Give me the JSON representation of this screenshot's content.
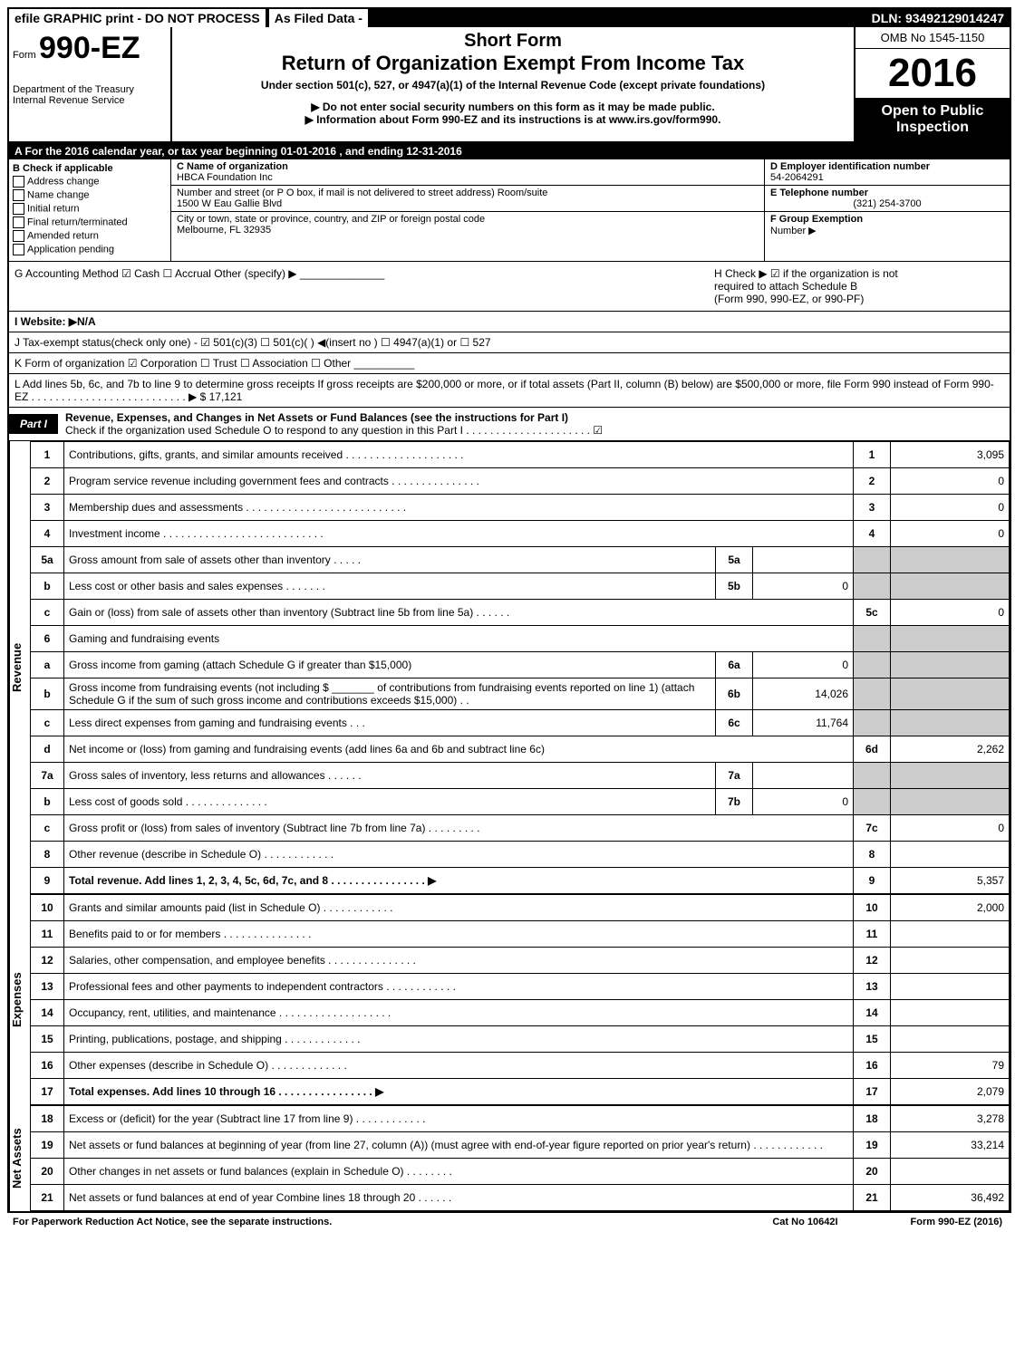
{
  "topbar": {
    "efile": "efile GRAPHIC print - DO NOT PROCESS",
    "filed": "As Filed Data -",
    "dln": "DLN: 93492129014247"
  },
  "header": {
    "form_prefix": "Form",
    "form_no": "990-EZ",
    "dept1": "Department of the Treasury",
    "dept2": "Internal Revenue Service",
    "short_form": "Short Form",
    "title": "Return of Organization Exempt From Income Tax",
    "subtitle": "Under section 501(c), 527, or 4947(a)(1) of the Internal Revenue Code (except private foundations)",
    "info1": "▶ Do not enter social security numbers on this form as it may be made public.",
    "info2": "▶ Information about Form 990-EZ and its instructions is at www.irs.gov/form990.",
    "omb": "OMB No 1545-1150",
    "year": "2016",
    "open1": "Open to Public",
    "open2": "Inspection"
  },
  "section_a": "A  For the 2016 calendar year, or tax year beginning 01-01-2016           , and ending 12-31-2016",
  "col_b": {
    "title": "B  Check if applicable",
    "opts": [
      "Address change",
      "Name change",
      "Initial return",
      "Final return/terminated",
      "Amended return",
      "Application pending"
    ]
  },
  "col_c": {
    "name_label": "C Name of organization",
    "name": "HBCA Foundation Inc",
    "street_label": "Number and street (or P O box, if mail is not delivered to street address)  Room/suite",
    "street": "1500 W Eau Gallie Blvd",
    "city_label": "City or town, state or province, country, and ZIP or foreign postal code",
    "city": "Melbourne, FL  32935"
  },
  "col_d": {
    "ein_label": "D Employer identification number",
    "ein": "54-2064291",
    "tel_label": "E Telephone number",
    "tel": "(321) 254-3700",
    "grp_label": "F Group Exemption",
    "grp2": "Number    ▶"
  },
  "row_g": {
    "left": "G Accounting Method    ☑ Cash   ☐ Accrual   Other (specify) ▶ ______________",
    "right1": "H   Check ▶   ☑  if the organization is not",
    "right2": "required to attach Schedule B",
    "right3": "(Form 990, 990-EZ, or 990-PF)"
  },
  "row_i": "I Website: ▶N/A",
  "row_j": "J Tax-exempt status(check only one) - ☑ 501(c)(3) ☐ 501(c)(  ) ◀(insert no ) ☐ 4947(a)(1) or ☐ 527",
  "row_k": "K Form of organization    ☑ Corporation   ☐ Trust   ☐ Association   ☐ Other  __________",
  "row_l": "L Add lines 5b, 6c, and 7b to line 9 to determine gross receipts  If gross receipts are $200,000 or more, or if total assets (Part II, column (B) below) are $500,000 or more, file Form 990 instead of Form 990-EZ  . . . . . . . . . . . . . . . . . . . . . . . . . .  ▶ $ 17,121",
  "part1": {
    "label": "Part I",
    "title": "Revenue, Expenses, and Changes in Net Assets or Fund Balances (see the instructions for Part I)",
    "check": "Check if the organization used Schedule O to respond to any question in this Part I . . . . . . . . . . . . . . . . . . . . .  ☑"
  },
  "sides": {
    "revenue": "Revenue",
    "expenses": "Expenses",
    "netassets": "Net Assets"
  },
  "lines": {
    "l1": {
      "n": "1",
      "d": "Contributions, gifts, grants, and similar amounts received . . . . . . . . . . . . . . . . . . . .",
      "r": "1",
      "v": "3,095"
    },
    "l2": {
      "n": "2",
      "d": "Program service revenue including government fees and contracts . . . . . . . . . . . . . . .",
      "r": "2",
      "v": "0"
    },
    "l3": {
      "n": "3",
      "d": "Membership dues and assessments . . . . . . . . . . . . . . . . . . . . . . . . . . .",
      "r": "3",
      "v": "0"
    },
    "l4": {
      "n": "4",
      "d": "Investment income . . . . . . . . . . . . . . . . . . . . . . . . . . .",
      "r": "4",
      "v": "0"
    },
    "l5a": {
      "n": "5a",
      "d": "Gross amount from sale of assets other than inventory . . . . .",
      "s": "5a",
      "sv": ""
    },
    "l5b": {
      "n": "b",
      "d": "Less  cost or other basis and sales expenses . . . . . . .",
      "s": "5b",
      "sv": "0"
    },
    "l5c": {
      "n": "c",
      "d": "Gain or (loss) from sale of assets other than inventory (Subtract line 5b from line 5a) . . . . . .",
      "r": "5c",
      "v": "0"
    },
    "l6": {
      "n": "6",
      "d": "Gaming and fundraising events"
    },
    "l6a": {
      "n": "a",
      "d": "Gross income from gaming (attach Schedule G if greater than $15,000)",
      "s": "6a",
      "sv": "0"
    },
    "l6b": {
      "n": "b",
      "d": "Gross income from fundraising events (not including $ _______ of contributions from fundraising events reported on line 1) (attach Schedule G if the sum of such gross income and contributions exceeds $15,000)    . .",
      "s": "6b",
      "sv": "14,026"
    },
    "l6c": {
      "n": "c",
      "d": "Less  direct expenses from gaming and fundraising events      . . .",
      "s": "6c",
      "sv": "11,764"
    },
    "l6d": {
      "n": "d",
      "d": "Net income or (loss) from gaming and fundraising events (add lines 6a and 6b and subtract line 6c)",
      "r": "6d",
      "v": "2,262"
    },
    "l7a": {
      "n": "7a",
      "d": "Gross sales of inventory, less returns and allowances . . . . . .",
      "s": "7a",
      "sv": ""
    },
    "l7b": {
      "n": "b",
      "d": "Less  cost of goods sold           . . . . . . . . . . . . . .",
      "s": "7b",
      "sv": "0"
    },
    "l7c": {
      "n": "c",
      "d": "Gross profit or (loss) from sales of inventory (Subtract line 7b from line 7a) . . . . . . . . .",
      "r": "7c",
      "v": "0"
    },
    "l8": {
      "n": "8",
      "d": "Other revenue (describe in Schedule O)                  . . . . . . . . . . . .",
      "r": "8",
      "v": ""
    },
    "l9": {
      "n": "9",
      "d": "Total revenue. Add lines 1, 2, 3, 4, 5c, 6d, 7c, and 8 . . . . . . . . . . . . . . . .   ▶",
      "r": "9",
      "v": "5,357"
    },
    "l10": {
      "n": "10",
      "d": "Grants and similar amounts paid (list in Schedule O)        . . . . . . . . . . . .",
      "r": "10",
      "v": "2,000"
    },
    "l11": {
      "n": "11",
      "d": "Benefits paid to or for members               . . . . . . . . . . . . . . .",
      "r": "11",
      "v": ""
    },
    "l12": {
      "n": "12",
      "d": "Salaries, other compensation, and employee benefits . . . . . . . . . . . . . . .",
      "r": "12",
      "v": ""
    },
    "l13": {
      "n": "13",
      "d": "Professional fees and other payments to independent contractors  . . . . . . . . . . . .",
      "r": "13",
      "v": ""
    },
    "l14": {
      "n": "14",
      "d": "Occupancy, rent, utilities, and maintenance . . . . . . . . . . . . . . . . . . .",
      "r": "14",
      "v": ""
    },
    "l15": {
      "n": "15",
      "d": "Printing, publications, postage, and shipping           . . . . . . . . . . . . .",
      "r": "15",
      "v": ""
    },
    "l16": {
      "n": "16",
      "d": "Other expenses (describe in Schedule O)             . . . . . . . . . . . . .",
      "r": "16",
      "v": "79"
    },
    "l17": {
      "n": "17",
      "d": "Total expenses. Add lines 10 through 16        . . . . . . . . . . . . . . . .   ▶",
      "r": "17",
      "v": "2,079"
    },
    "l18": {
      "n": "18",
      "d": "Excess or (deficit) for the year (Subtract line 17 from line 9)     . . . . . . . . . . . .",
      "r": "18",
      "v": "3,278"
    },
    "l19": {
      "n": "19",
      "d": "Net assets or fund balances at beginning of year (from line 27, column (A)) (must agree with end-of-year figure reported on prior year's return)            . . . . . . . . . . . .",
      "r": "19",
      "v": "33,214"
    },
    "l20": {
      "n": "20",
      "d": "Other changes in net assets or fund balances (explain in Schedule O)    . . . . . . . .",
      "r": "20",
      "v": ""
    },
    "l21": {
      "n": "21",
      "d": "Net assets or fund balances at end of year  Combine lines 18 through 20       . . . . . .",
      "r": "21",
      "v": "36,492"
    }
  },
  "footer": {
    "left": "For Paperwork Reduction Act Notice, see the separate instructions.",
    "mid": "Cat No 10642I",
    "right": "Form 990-EZ (2016)"
  }
}
